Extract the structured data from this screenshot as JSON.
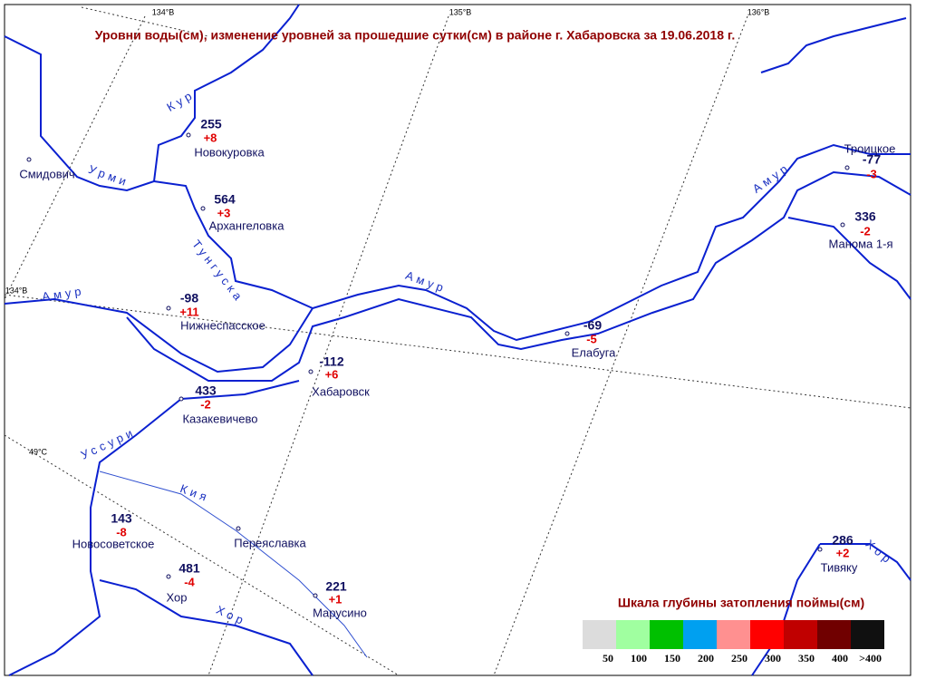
{
  "title": "Уровни воды(см), изменение уровней за прошедшие сутки(см) в районе г. Хабаровска за 19.06.2018 г.",
  "graticule": [
    "134°В",
    "135°В",
    "136°В",
    "134°В",
    "49°С"
  ],
  "rivers": [
    "Кур",
    "Урми",
    "Тунгуска",
    "Амур",
    "Амур",
    "Амур",
    "Уссури",
    "Кия",
    "Хор",
    "Хор"
  ],
  "stations": [
    {
      "name": "Новокуровка",
      "level": "255",
      "change": "+8"
    },
    {
      "name": "Архангеловка",
      "level": "564",
      "change": "+3"
    },
    {
      "name": "Нижнеспасское",
      "level": "-98",
      "change": "+11"
    },
    {
      "name": "Хабаровск",
      "level": "-112",
      "change": "+6"
    },
    {
      "name": "Казакевичево",
      "level": "433",
      "change": "-2"
    },
    {
      "name": "Елабуга",
      "level": "-69",
      "change": "-5"
    },
    {
      "name": "Троицкое",
      "level": "-77",
      "change": "-3"
    },
    {
      "name": "Манома 1-я",
      "level": "336",
      "change": "-2"
    },
    {
      "name": "Новосоветское",
      "level": "143",
      "change": "-8"
    },
    {
      "name": "Переяславка"
    },
    {
      "name": "Хор",
      "level": "481",
      "change": "-4"
    },
    {
      "name": "Марусино",
      "level": "221",
      "change": "+1"
    },
    {
      "name": "Тивяку",
      "level": "286",
      "change": "+2"
    },
    {
      "name": "Смидович"
    }
  ],
  "legend": {
    "title": "Шкала глубины затопления поймы(см)",
    "items": [
      {
        "color": "#dcdcdc",
        "label": "50"
      },
      {
        "color": "#a0ffa0",
        "label": "100"
      },
      {
        "color": "#00c000",
        "label": "150"
      },
      {
        "color": "#00a0f0",
        "label": "200"
      },
      {
        "color": "#ff9090",
        "label": "250"
      },
      {
        "color": "#ff0000",
        "label": "300"
      },
      {
        "color": "#c00000",
        "label": "350"
      },
      {
        "color": "#700000",
        "label": "400"
      },
      {
        "color": "#101010",
        "label": ">400"
      }
    ]
  }
}
